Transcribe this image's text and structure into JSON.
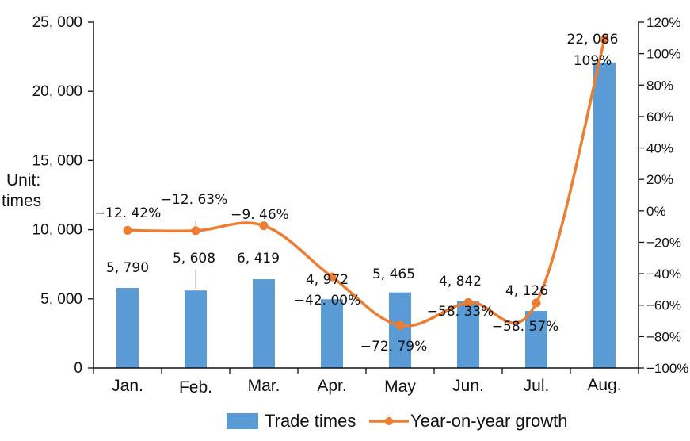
{
  "chart_data": {
    "type": "bar",
    "categories": [
      "Jan.",
      "Feb.",
      "Mar.",
      "Apr.",
      "May",
      "Jun.",
      "Jul.",
      "Aug."
    ],
    "series": [
      {
        "name": "Trade times",
        "type": "bar",
        "axis": "left",
        "color": "#5b9bd5",
        "values": [
          5790,
          5608,
          6419,
          4972,
          5465,
          4842,
          4126,
          22086
        ],
        "labels": [
          "5, 790",
          "5, 608",
          "6, 419",
          "4, 972",
          "5, 465",
          "4, 842",
          "4, 126",
          "22, 086"
        ]
      },
      {
        "name": "Year-on-year growth",
        "type": "line",
        "axis": "right",
        "color": "#ed7d31",
        "values": [
          -12.42,
          -12.63,
          -9.46,
          -42.0,
          -72.79,
          -58.33,
          -58.57,
          109
        ],
        "labels": [
          "−12. 42%",
          "−12. 63%",
          "−9. 46%",
          "−42. 00%",
          "−72. 79%",
          "−58. 33%",
          "−58. 57%",
          "109%"
        ]
      }
    ],
    "y_left": {
      "label": "Unit: times",
      "ylim": [
        0,
        25000
      ],
      "ticks": [
        0,
        5000,
        10000,
        15000,
        20000,
        25000
      ],
      "tick_labels": [
        "0",
        "5, 000",
        "10, 000",
        "15, 000",
        "20, 000",
        "25, 000"
      ]
    },
    "y_right": {
      "ylim": [
        -100,
        120
      ],
      "ticks": [
        -100,
        -80,
        -60,
        -40,
        -20,
        0,
        20,
        40,
        60,
        80,
        100,
        120
      ],
      "tick_labels": [
        "−100%",
        "−80%",
        "−60%",
        "−40%",
        "−20%",
        "0%",
        "20%",
        "40%",
        "60%",
        "80%",
        "100%",
        "120%"
      ]
    },
    "grid": false,
    "legend": "bottom"
  }
}
